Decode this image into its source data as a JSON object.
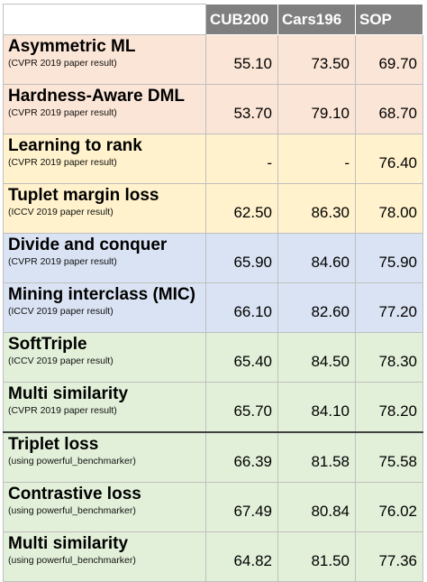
{
  "columns": [
    "CUB200",
    "Cars196",
    "SOP"
  ],
  "rows": [
    {
      "name": "Asymmetric ML",
      "source": "(CVPR 2019 paper result)",
      "values": [
        "55.10",
        "73.50",
        "69.70"
      ],
      "group": "red"
    },
    {
      "name": "Hardness-Aware DML",
      "source": "(CVPR 2019 paper result)",
      "values": [
        "53.70",
        "79.10",
        "68.70"
      ],
      "group": "red"
    },
    {
      "name": "Learning to rank",
      "source": "(CVPR 2019 paper result)",
      "values": [
        "-",
        "-",
        "76.40"
      ],
      "group": "yellow"
    },
    {
      "name": "Tuplet margin loss",
      "source": "(ICCV 2019 paper result)",
      "values": [
        "62.50",
        "86.30",
        "78.00"
      ],
      "group": "yellow"
    },
    {
      "name": "Divide and conquer",
      "source": "(CVPR 2019 paper result)",
      "values": [
        "65.90",
        "84.60",
        "75.90"
      ],
      "group": "blue"
    },
    {
      "name": "Mining interclass (MIC)",
      "source": "(ICCV 2019 paper result)",
      "values": [
        "66.10",
        "82.60",
        "77.20"
      ],
      "group": "blue"
    },
    {
      "name": "SoftTriple",
      "source": "(ICCV 2019 paper result)",
      "values": [
        "65.40",
        "84.50",
        "78.30"
      ],
      "group": "green"
    },
    {
      "name": "Multi similarity",
      "source": "(CVPR 2019 paper result)",
      "values": [
        "65.70",
        "84.10",
        "78.20"
      ],
      "group": "green"
    },
    {
      "name": "Triplet loss",
      "source": "(using powerful_benchmarker)",
      "values": [
        "66.39",
        "81.58",
        "75.58"
      ],
      "group": "green"
    },
    {
      "name": "Contrastive loss",
      "source": "(using powerful_benchmarker)",
      "values": [
        "67.49",
        "80.84",
        "76.02"
      ],
      "group": "green"
    },
    {
      "name": "Multi similarity",
      "source": "(using powerful_benchmarker)",
      "values": [
        "64.82",
        "81.50",
        "77.36"
      ],
      "group": "green"
    }
  ],
  "group_colors": {
    "red": "#fbe5d6",
    "yellow": "#fff2cc",
    "blue": "#dae3f3",
    "green": "#e2f0d9",
    "header": "#7f7f7f"
  }
}
